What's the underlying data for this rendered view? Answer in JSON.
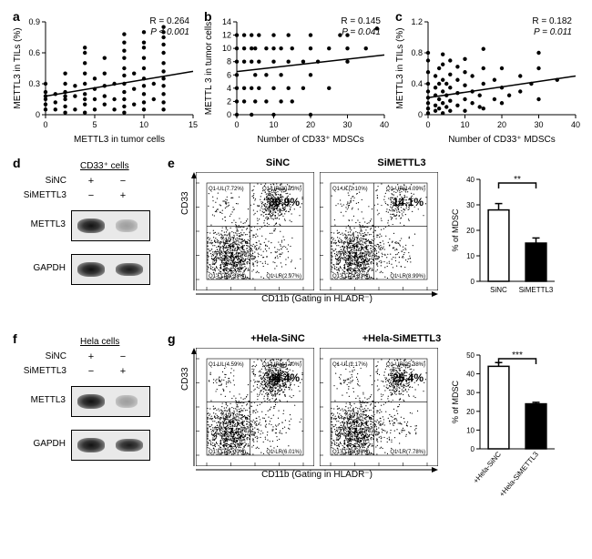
{
  "scatter_panels": [
    {
      "id": "a",
      "R": "R = 0.264",
      "P": "P < 0.001",
      "xlabel": "METTL3 in tumor cells",
      "ylabel": "METTL3 in TILs (%)",
      "xlim": [
        0,
        15
      ],
      "xticks": [
        0,
        5,
        10,
        15
      ],
      "ylim": [
        0,
        0.9
      ],
      "yticks": [
        0,
        0.3,
        0.6,
        0.9
      ],
      "trend": [
        [
          0,
          0.18
        ],
        [
          15,
          0.42
        ]
      ],
      "points": [
        [
          0,
          0.05
        ],
        [
          0,
          0.1
        ],
        [
          0,
          0.15
        ],
        [
          0,
          0.18
        ],
        [
          0,
          0.22
        ],
        [
          0,
          0.3
        ],
        [
          1,
          0.05
        ],
        [
          1,
          0.12
        ],
        [
          1,
          0.2
        ],
        [
          2,
          0.02
        ],
        [
          2,
          0.08
        ],
        [
          2,
          0.15
        ],
        [
          2,
          0.18
        ],
        [
          2,
          0.22
        ],
        [
          2,
          0.3
        ],
        [
          2,
          0.4
        ],
        [
          3,
          0.05
        ],
        [
          3,
          0.18
        ],
        [
          3,
          0.28
        ],
        [
          4,
          0.02
        ],
        [
          4,
          0.1
        ],
        [
          4,
          0.15
        ],
        [
          4,
          0.2
        ],
        [
          4,
          0.3
        ],
        [
          4,
          0.4
        ],
        [
          4,
          0.5
        ],
        [
          4,
          0.6
        ],
        [
          4,
          0.65
        ],
        [
          5,
          0.05
        ],
        [
          5,
          0.15
        ],
        [
          5,
          0.25
        ],
        [
          5,
          0.35
        ],
        [
          6,
          0.1
        ],
        [
          6,
          0.18
        ],
        [
          6,
          0.28
        ],
        [
          6,
          0.4
        ],
        [
          6,
          0.55
        ],
        [
          7,
          0.05
        ],
        [
          7,
          0.15
        ],
        [
          7,
          0.3
        ],
        [
          8,
          0.02
        ],
        [
          8,
          0.08
        ],
        [
          8,
          0.15
        ],
        [
          8,
          0.22
        ],
        [
          8,
          0.3
        ],
        [
          8,
          0.38
        ],
        [
          8,
          0.45
        ],
        [
          8,
          0.55
        ],
        [
          8,
          0.62
        ],
        [
          8,
          0.7
        ],
        [
          8,
          0.78
        ],
        [
          9,
          0.1
        ],
        [
          9,
          0.25
        ],
        [
          9,
          0.4
        ],
        [
          10,
          0.05
        ],
        [
          10,
          0.12
        ],
        [
          10,
          0.2
        ],
        [
          10,
          0.28
        ],
        [
          10,
          0.35
        ],
        [
          10,
          0.45
        ],
        [
          10,
          0.55
        ],
        [
          10,
          0.65
        ],
        [
          10,
          0.7
        ],
        [
          10,
          0.8
        ],
        [
          11,
          0.15
        ],
        [
          11,
          0.3
        ],
        [
          12,
          0.05
        ],
        [
          12,
          0.12
        ],
        [
          12,
          0.2
        ],
        [
          12,
          0.28
        ],
        [
          12,
          0.35
        ],
        [
          12,
          0.42
        ],
        [
          12,
          0.5
        ],
        [
          12,
          0.6
        ],
        [
          12,
          0.68
        ],
        [
          12,
          0.75
        ],
        [
          12,
          0.8
        ],
        [
          12,
          0.85
        ]
      ]
    },
    {
      "id": "b",
      "R": "R = 0.145",
      "P": "P = 0.041",
      "xlabel": "Number of CD33⁺ MDSCs",
      "ylabel": "METTL 3 in tumor cells",
      "xlim": [
        0,
        40
      ],
      "xticks": [
        0,
        10,
        20,
        30,
        40
      ],
      "ylim": [
        0,
        14
      ],
      "yticks": [
        0,
        2,
        4,
        6,
        8,
        10,
        12,
        14
      ],
      "trend": [
        [
          0,
          6.5
        ],
        [
          40,
          9.0
        ]
      ],
      "points": [
        [
          0,
          0
        ],
        [
          0,
          2
        ],
        [
          0,
          4
        ],
        [
          0,
          6
        ],
        [
          0,
          8
        ],
        [
          0,
          10
        ],
        [
          0,
          12
        ],
        [
          2,
          2
        ],
        [
          2,
          4
        ],
        [
          2,
          8
        ],
        [
          2,
          10
        ],
        [
          2,
          12
        ],
        [
          4,
          0
        ],
        [
          4,
          4
        ],
        [
          4,
          8
        ],
        [
          4,
          10
        ],
        [
          4,
          12
        ],
        [
          5,
          2
        ],
        [
          5,
          6
        ],
        [
          5,
          10
        ],
        [
          6,
          4
        ],
        [
          6,
          8
        ],
        [
          6,
          12
        ],
        [
          8,
          2
        ],
        [
          8,
          6
        ],
        [
          8,
          10
        ],
        [
          10,
          0
        ],
        [
          10,
          4
        ],
        [
          10,
          8
        ],
        [
          10,
          10
        ],
        [
          10,
          12
        ],
        [
          12,
          2
        ],
        [
          12,
          6
        ],
        [
          12,
          10
        ],
        [
          14,
          4
        ],
        [
          14,
          8
        ],
        [
          14,
          12
        ],
        [
          15,
          2
        ],
        [
          15,
          10
        ],
        [
          18,
          4
        ],
        [
          18,
          8
        ],
        [
          20,
          0
        ],
        [
          20,
          6
        ],
        [
          20,
          10
        ],
        [
          20,
          12
        ],
        [
          22,
          8
        ],
        [
          25,
          4
        ],
        [
          25,
          10
        ],
        [
          28,
          12
        ],
        [
          30,
          8
        ],
        [
          30,
          10
        ],
        [
          30,
          12
        ],
        [
          35,
          10
        ],
        [
          38,
          13
        ]
      ]
    },
    {
      "id": "c",
      "R": "R = 0.182",
      "P": "P = 0.011",
      "xlabel": "Number of CD33⁺ MDSCs",
      "ylabel": "METTL3 in TILs (%)",
      "xlim": [
        0,
        40
      ],
      "xticks": [
        0,
        10,
        20,
        30,
        40
      ],
      "ylim": [
        0,
        1.2
      ],
      "yticks": [
        0,
        0.4,
        0.8,
        1.2
      ],
      "trend": [
        [
          0,
          0.22
        ],
        [
          40,
          0.5
        ]
      ],
      "points": [
        [
          0,
          0.02
        ],
        [
          0,
          0.08
        ],
        [
          0,
          0.15
        ],
        [
          0,
          0.22
        ],
        [
          0,
          0.3
        ],
        [
          0,
          0.4
        ],
        [
          0,
          0.55
        ],
        [
          0,
          0.7
        ],
        [
          0,
          0.8
        ],
        [
          2,
          0.05
        ],
        [
          2,
          0.12
        ],
        [
          2,
          0.25
        ],
        [
          2,
          0.35
        ],
        [
          2,
          0.5
        ],
        [
          3,
          0.08
        ],
        [
          3,
          0.2
        ],
        [
          3,
          0.4
        ],
        [
          3,
          0.6
        ],
        [
          4,
          0.02
        ],
        [
          4,
          0.15
        ],
        [
          4,
          0.3
        ],
        [
          4,
          0.45
        ],
        [
          4,
          0.65
        ],
        [
          4,
          0.78
        ],
        [
          5,
          0.1
        ],
        [
          5,
          0.25
        ],
        [
          5,
          0.4
        ],
        [
          6,
          0.05
        ],
        [
          6,
          0.18
        ],
        [
          6,
          0.35
        ],
        [
          6,
          0.52
        ],
        [
          6,
          0.7
        ],
        [
          8,
          0.12
        ],
        [
          8,
          0.28
        ],
        [
          8,
          0.45
        ],
        [
          8,
          0.62
        ],
        [
          10,
          0.05
        ],
        [
          10,
          0.2
        ],
        [
          10,
          0.38
        ],
        [
          10,
          0.55
        ],
        [
          10,
          0.72
        ],
        [
          12,
          0.15
        ],
        [
          12,
          0.3
        ],
        [
          12,
          0.5
        ],
        [
          14,
          0.1
        ],
        [
          14,
          0.25
        ],
        [
          15,
          0.08
        ],
        [
          15,
          0.4
        ],
        [
          15,
          0.6
        ],
        [
          15,
          0.85
        ],
        [
          18,
          0.2
        ],
        [
          18,
          0.45
        ],
        [
          20,
          0.15
        ],
        [
          20,
          0.35
        ],
        [
          20,
          0.6
        ],
        [
          22,
          0.25
        ],
        [
          25,
          0.3
        ],
        [
          25,
          0.5
        ],
        [
          28,
          0.4
        ],
        [
          30,
          0.2
        ],
        [
          30,
          0.6
        ],
        [
          30,
          0.8
        ],
        [
          35,
          0.45
        ]
      ]
    }
  ],
  "panel_d": {
    "label": "d",
    "title": "CD33⁺ cells",
    "rows": [
      "SiNC",
      "SiMETTL3"
    ],
    "matrix": [
      [
        "+",
        "−"
      ],
      [
        "−",
        "+"
      ]
    ],
    "proteins": [
      "METTL3",
      "GAPDH"
    ]
  },
  "panel_f": {
    "label": "f",
    "title": "Hela cells",
    "rows": [
      "SiNC",
      "SiMETTL3"
    ],
    "matrix": [
      [
        "+",
        "−"
      ],
      [
        "−",
        "+"
      ]
    ],
    "proteins": [
      "METTL3",
      "GAPDH"
    ]
  },
  "panel_e": {
    "label": "e",
    "titles": [
      "SiNC",
      "SiMETTL3"
    ],
    "xlabel": "CD11b (Gating in HLADR⁻)",
    "ylabel": "CD33",
    "big_values": [
      "30.9%",
      "14.1%"
    ],
    "quads": [
      [
        "Q1-UL(7.72%)",
        "Q1-UR(30.93%)",
        "Q1-LL(58.38%)",
        "Q1-LR(2.97%)"
      ],
      [
        "Q1-UL(2.10%)",
        "Q1-UR(14.09%)",
        "Q1-LL(74.83%)",
        "Q1-LR(8.99%)"
      ]
    ],
    "bar": {
      "ylabel": "% of MDSC",
      "ylim": [
        0,
        40
      ],
      "yticks": [
        0,
        10,
        20,
        30,
        40
      ],
      "cats": [
        "SiNC",
        "SiMETTL3"
      ],
      "values": [
        28,
        15
      ],
      "errors": [
        2.5,
        2.0
      ],
      "sig": "**"
    }
  },
  "panel_g": {
    "label": "g",
    "titles": [
      "+Hela-SiNC",
      "+Hela-SiMETTL3"
    ],
    "xlabel": "CD11b (Gating in HLADR⁻)",
    "ylabel": "CD33",
    "big_values": [
      "44.4%",
      "25.4%"
    ],
    "quads": [
      [
        "Q1-UL(4.59%)",
        "Q1-UR(44.40%)",
        "Q1-LL(45.00%)",
        "Q1-LR(6.01%)"
      ],
      [
        "Q1-UL(2.17%)",
        "Q1-UR(25.38%)",
        "Q1-LL(64.66%)",
        "Q1-LR(7.78%)"
      ]
    ],
    "bar": {
      "ylabel": "% of MDSC",
      "ylim": [
        0,
        50
      ],
      "yticks": [
        0,
        10,
        20,
        30,
        40,
        50
      ],
      "cats": [
        "+Hela-SiNC",
        "+Hela-SiMETTL3"
      ],
      "values": [
        44,
        24
      ],
      "errors": [
        2.0,
        0.8
      ],
      "sig": "***"
    }
  },
  "colors": {
    "point": "#000000",
    "trend": "#000000",
    "axis": "#000000",
    "bar_open": "#ffffff",
    "bar_filled": "#000000",
    "background": "#ffffff"
  },
  "fonts": {
    "panel_label_pt": 14,
    "axis_label_pt": 10,
    "tick_pt": 9,
    "stats_pt": 10
  }
}
